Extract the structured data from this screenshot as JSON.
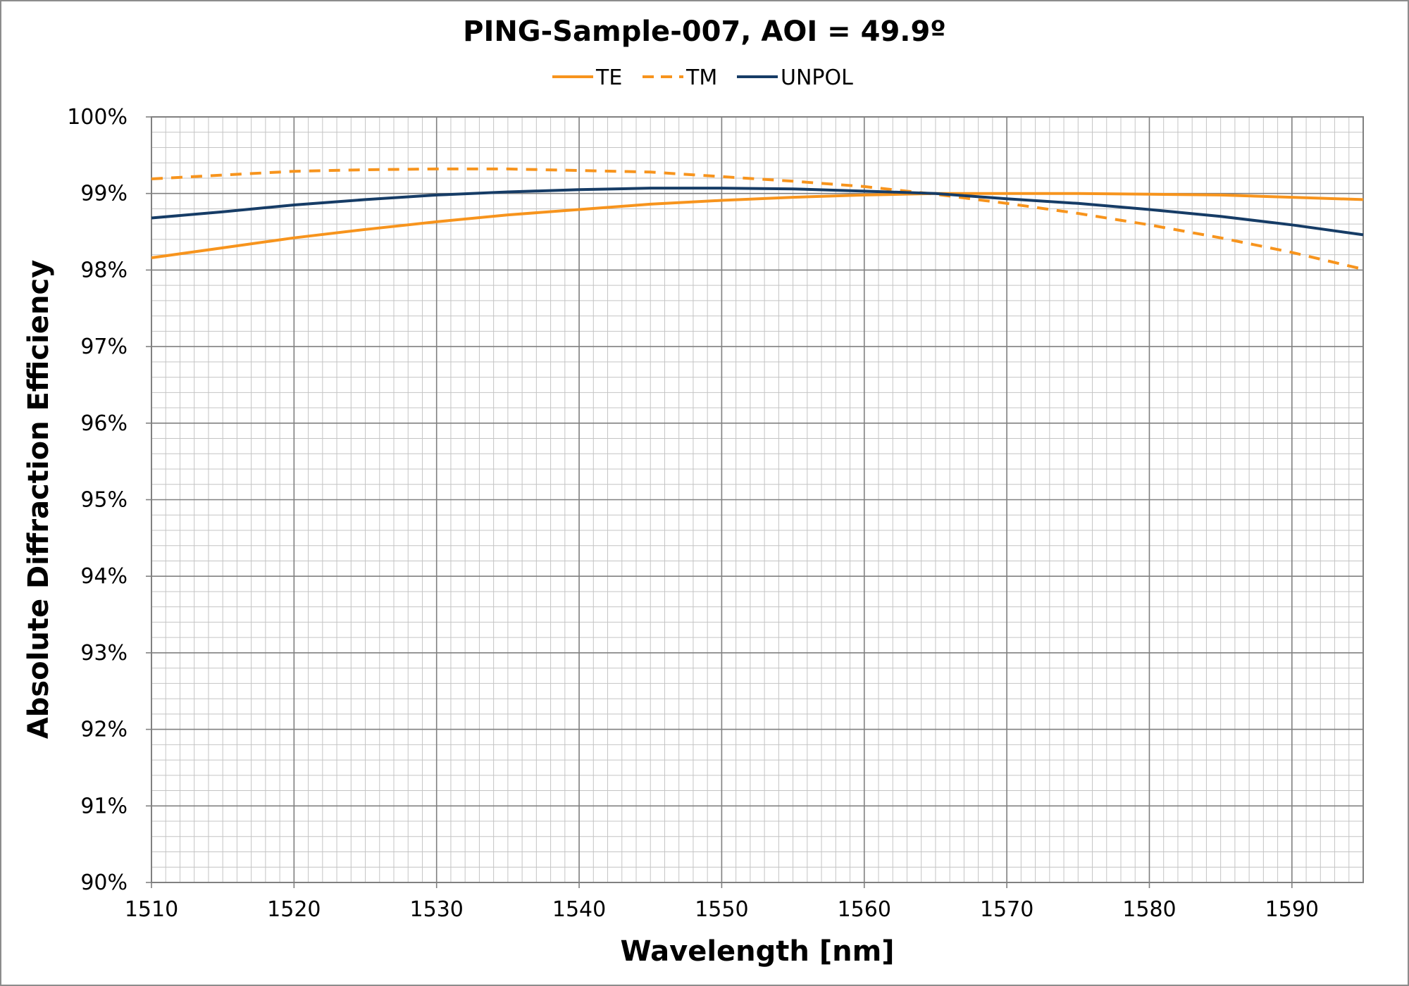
{
  "chart_data": {
    "type": "line",
    "title": "PING-Sample-007, AOI = 49.9º",
    "xlabel": "Wavelength [nm]",
    "ylabel": "Absolute Diffraction Efficiency",
    "xlim": [
      1510,
      1595
    ],
    "ylim": [
      90,
      100
    ],
    "x_ticks": [
      1510,
      1520,
      1530,
      1540,
      1550,
      1560,
      1570,
      1580,
      1590
    ],
    "x_tick_labels": [
      "1510",
      "1520",
      "1530",
      "1540",
      "1550",
      "1560",
      "1570",
      "1580",
      "1590"
    ],
    "y_ticks": [
      90,
      91,
      92,
      93,
      94,
      95,
      96,
      97,
      98,
      99,
      100
    ],
    "y_tick_labels": [
      "90%",
      "91%",
      "92%",
      "93%",
      "94%",
      "95%",
      "96%",
      "97%",
      "98%",
      "99%",
      "100%"
    ],
    "x_minor_step": 1,
    "y_minor_step": 0.2,
    "grid": true,
    "legend_position": "top-center",
    "x": [
      1510,
      1515,
      1520,
      1525,
      1530,
      1535,
      1540,
      1545,
      1550,
      1555,
      1560,
      1565,
      1570,
      1575,
      1580,
      1585,
      1590,
      1595
    ],
    "series": [
      {
        "name": "TE",
        "color": "#f7941d",
        "dash": "solid",
        "values": [
          98.16,
          98.29,
          98.42,
          98.53,
          98.63,
          98.72,
          98.79,
          98.86,
          98.91,
          98.95,
          98.98,
          99.0,
          99.0,
          99.0,
          98.99,
          98.98,
          98.95,
          98.92
        ]
      },
      {
        "name": "TM",
        "color": "#f7941d",
        "dash": "dashed",
        "values": [
          99.19,
          99.24,
          99.29,
          99.31,
          99.32,
          99.32,
          99.3,
          99.28,
          99.22,
          99.16,
          99.09,
          98.99,
          98.87,
          98.74,
          98.59,
          98.42,
          98.23,
          98.01
        ]
      },
      {
        "name": "UNPOL",
        "color": "#163c66",
        "dash": "solid",
        "values": [
          98.68,
          98.76,
          98.85,
          98.92,
          98.98,
          99.02,
          99.05,
          99.07,
          99.07,
          99.06,
          99.03,
          99.0,
          98.93,
          98.87,
          98.79,
          98.7,
          98.59,
          98.46
        ]
      }
    ]
  }
}
